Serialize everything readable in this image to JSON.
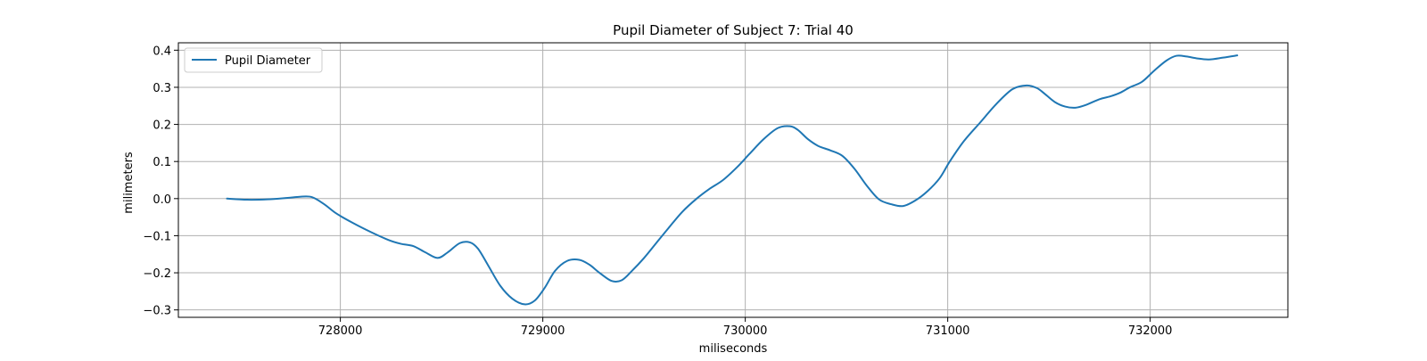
{
  "chart_data": {
    "type": "line",
    "title": "Pupil Diameter of Subject 7: Trial 40",
    "xlabel": "miliseconds",
    "ylabel": "milimeters",
    "xlim": [
      727200,
      732680
    ],
    "ylim": [
      -0.32,
      0.42
    ],
    "xticks": [
      728000,
      729000,
      730000,
      731000,
      732000
    ],
    "xtick_labels": [
      "728000",
      "729000",
      "730000",
      "731000",
      "732000"
    ],
    "yticks": [
      -0.3,
      -0.2,
      -0.1,
      0.0,
      0.1,
      0.2,
      0.3,
      0.4
    ],
    "ytick_labels": [
      "−0.3",
      "−0.2",
      "−0.1",
      "0.0",
      "0.1",
      "0.2",
      "0.3",
      "0.4"
    ],
    "grid": true,
    "legend": {
      "placement": "top-left",
      "entries": [
        "Pupil Diameter"
      ]
    },
    "series": [
      {
        "name": "Pupil Diameter",
        "color": "#1f77b4",
        "x": [
          727440,
          727540,
          727640,
          727740,
          727800,
          727860,
          727920,
          727980,
          728060,
          728150,
          728240,
          728300,
          728360,
          728420,
          728480,
          728530,
          728590,
          728640,
          728680,
          728730,
          728790,
          728850,
          728910,
          728960,
          729010,
          729060,
          729120,
          729180,
          729230,
          729280,
          729340,
          729390,
          729440,
          729500,
          729560,
          729620,
          729690,
          729760,
          729820,
          729890,
          729960,
          730020,
          730090,
          730160,
          730220,
          730260,
          730310,
          730360,
          730420,
          730480,
          730540,
          730600,
          730660,
          730720,
          730780,
          730840,
          730900,
          730960,
          731010,
          731080,
          731160,
          731240,
          731320,
          731390,
          731440,
          731480,
          731530,
          731580,
          731630,
          731680,
          731750,
          731800,
          731850,
          731900,
          731960,
          732020,
          732080,
          732130,
          732180,
          732230,
          732290,
          732360,
          732430
        ],
        "y": [
          0.0,
          -0.003,
          -0.002,
          0.002,
          0.005,
          0.004,
          -0.015,
          -0.04,
          -0.065,
          -0.09,
          -0.112,
          -0.122,
          -0.128,
          -0.145,
          -0.16,
          -0.145,
          -0.12,
          -0.118,
          -0.135,
          -0.18,
          -0.235,
          -0.27,
          -0.285,
          -0.275,
          -0.24,
          -0.195,
          -0.168,
          -0.165,
          -0.178,
          -0.2,
          -0.222,
          -0.22,
          -0.195,
          -0.16,
          -0.12,
          -0.08,
          -0.035,
          0.0,
          0.025,
          0.05,
          0.085,
          0.12,
          0.16,
          0.19,
          0.195,
          0.185,
          0.16,
          0.142,
          0.13,
          0.115,
          0.08,
          0.035,
          -0.002,
          -0.015,
          -0.02,
          -0.005,
          0.02,
          0.055,
          0.1,
          0.155,
          0.205,
          0.255,
          0.295,
          0.305,
          0.298,
          0.282,
          0.26,
          0.248,
          0.245,
          0.252,
          0.268,
          0.275,
          0.285,
          0.3,
          0.315,
          0.345,
          0.372,
          0.385,
          0.383,
          0.378,
          0.375,
          0.38,
          0.386
        ]
      }
    ]
  }
}
